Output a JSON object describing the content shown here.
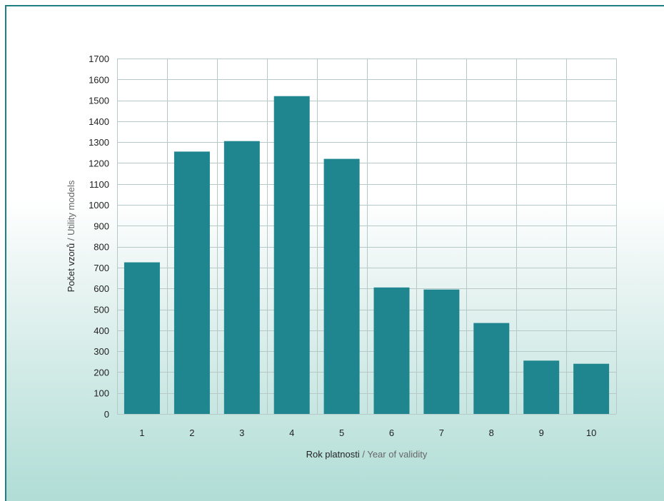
{
  "colors": {
    "bar": "#1f8690",
    "frame_border": "#1e7f83",
    "grid": "#b7c8c8"
  },
  "chart_data": {
    "type": "bar",
    "categories": [
      "1",
      "2",
      "3",
      "4",
      "5",
      "6",
      "7",
      "8",
      "9",
      "10"
    ],
    "values": [
      725,
      1255,
      1305,
      1520,
      1220,
      605,
      595,
      435,
      255,
      240
    ],
    "xlabel_primary": "Rok platnosti",
    "xlabel_separator": " / ",
    "xlabel_secondary": "Year of validity",
    "ylabel_primary": "Počet vzorů",
    "ylabel_separator": " / ",
    "ylabel_secondary": "Utility models",
    "ylim": [
      0,
      1700
    ],
    "yticks": [
      0,
      100,
      200,
      300,
      400,
      500,
      600,
      700,
      800,
      900,
      1000,
      1100,
      1200,
      1300,
      1400,
      1500,
      1600,
      1700
    ],
    "grid": true,
    "legend": false
  }
}
